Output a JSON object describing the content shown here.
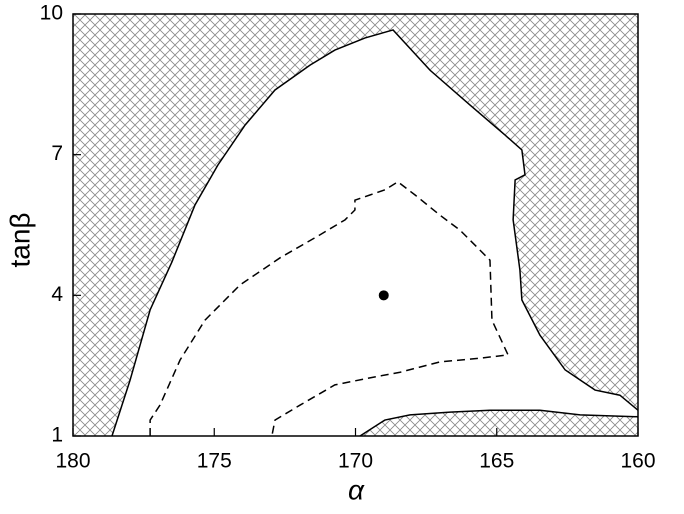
{
  "chart_data": {
    "type": "contour",
    "xlabel": "α",
    "ylabel": "tanβ",
    "xlim": [
      180,
      160
    ],
    "xticks": [
      180,
      175,
      170,
      165,
      160
    ],
    "ylim": [
      1,
      10
    ],
    "yticks": [
      1,
      4,
      7,
      10
    ],
    "hatch_color": "#888888",
    "line_color": "#000000",
    "contours": [
      {
        "line": "solid",
        "x": [
          178.62,
          177.98,
          177.27,
          176.5,
          175.68,
          174.87,
          173.91,
          172.85,
          171.61,
          170.73,
          169.66,
          168.67,
          167.36,
          165.95,
          164.71,
          164.11,
          164.0,
          164.35,
          164.42,
          164.18,
          164.11,
          163.47,
          162.58,
          161.52,
          160.64,
          160.0
        ],
        "y": [
          1.0,
          2.19,
          3.69,
          4.71,
          5.93,
          6.78,
          7.63,
          8.38,
          8.91,
          9.23,
          9.49,
          9.66,
          8.8,
          8.06,
          7.42,
          7.1,
          6.57,
          6.46,
          5.61,
          4.54,
          3.9,
          3.15,
          2.41,
          1.98,
          1.87,
          1.55
        ]
      },
      {
        "line": "solid",
        "x": [
          169.84,
          168.96,
          168.07,
          166.65,
          165.24,
          163.47,
          162.05,
          160.0
        ],
        "y": [
          1.0,
          1.34,
          1.45,
          1.51,
          1.55,
          1.55,
          1.45,
          1.41
        ]
      },
      {
        "line": "dashed",
        "x": [
          177.27,
          177.27,
          176.92,
          176.21,
          175.33,
          174.09,
          172.67,
          171.26,
          170.37,
          170.02,
          170.02,
          169.49,
          168.96,
          168.5,
          167.89,
          167.01,
          166.3,
          165.24,
          165.17,
          164.6,
          165.59,
          167.01,
          168.42,
          169.49,
          170.73,
          171.96,
          172.85,
          172.96
        ],
        "y": [
          1.0,
          1.34,
          1.66,
          2.62,
          3.47,
          4.22,
          4.8,
          5.29,
          5.61,
          5.82,
          6.03,
          6.14,
          6.25,
          6.42,
          6.14,
          5.71,
          5.39,
          4.75,
          3.47,
          2.73,
          2.66,
          2.58,
          2.36,
          2.24,
          2.09,
          1.66,
          1.34,
          1.0
        ]
      }
    ],
    "point": {
      "x": 169,
      "y": 4
    }
  }
}
